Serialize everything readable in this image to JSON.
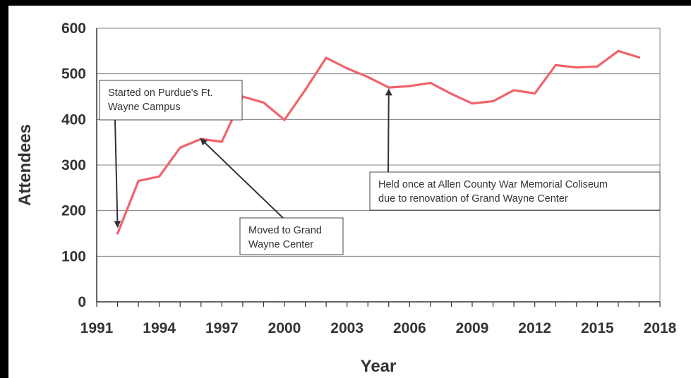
{
  "chart_data": {
    "type": "line",
    "title": "",
    "xlabel": "Year",
    "ylabel": "Attendees",
    "xlim": [
      1991,
      2018
    ],
    "ylim": [
      0,
      600
    ],
    "xticks": [
      "1991",
      "1994",
      "1997",
      "2000",
      "2003",
      "2006",
      "2009",
      "2012",
      "2015",
      "2018"
    ],
    "yticks": [
      "0",
      "100",
      "200",
      "300",
      "400",
      "500",
      "600"
    ],
    "grid": "horizontal",
    "series": [
      {
        "color": "#f0636b",
        "x": [
          1992,
          1993,
          1994,
          1995,
          1996,
          1997,
          1998,
          1999,
          2000,
          2001,
          2002,
          2003,
          2004,
          2005,
          2006,
          2007,
          2008,
          2009,
          2010,
          2011,
          2012,
          2013,
          2014,
          2015,
          2016,
          2017
        ],
        "y": [
          150,
          265,
          275,
          338,
          357,
          351,
          450,
          437,
          399,
          465,
          535,
          512,
          493,
          470,
          473,
          480,
          456,
          435,
          440,
          464,
          457,
          519,
          514,
          516,
          550,
          536
        ]
      }
    ],
    "annotations": [
      {
        "lines": [
          "Started on Purdue's Ft.",
          "Wayne Campus"
        ],
        "points_to": {
          "x": 1992,
          "y": 165
        }
      },
      {
        "lines": [
          "Moved to Grand",
          "Wayne Center"
        ],
        "points_to": {
          "x": 1996,
          "y": 357
        }
      },
      {
        "lines": [
          "Held once at Allen County War Memorial Coliseum",
          "due to renovation of Grand Wayne Center"
        ],
        "points_to": {
          "x": 2005,
          "y": 465
        }
      }
    ]
  }
}
